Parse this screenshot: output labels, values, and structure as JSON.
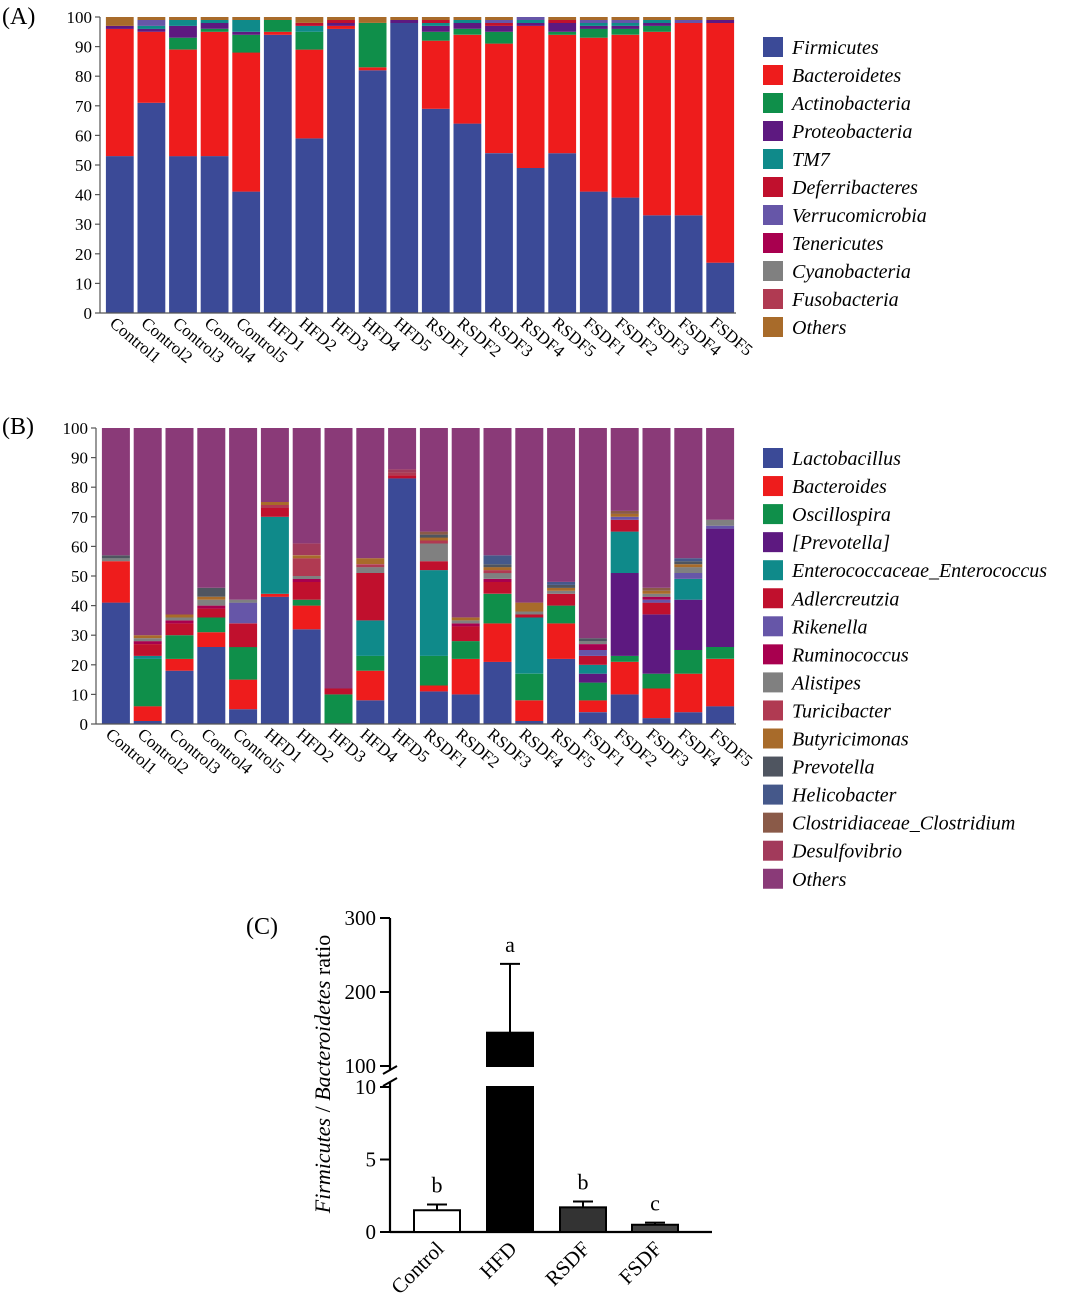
{
  "chart_data": [
    {
      "type": "stacked-bar",
      "panel_label": "(A)",
      "ylim": [
        0,
        100
      ],
      "yticks": [
        0,
        10,
        20,
        30,
        40,
        50,
        60,
        70,
        80,
        90,
        100
      ],
      "categories": [
        "Control1",
        "Control2",
        "Control3",
        "Control4",
        "Control5",
        "HFD1",
        "HFD2",
        "HFD3",
        "HFD4",
        "HFD5",
        "RSDF1",
        "RSDF2",
        "RSDF3",
        "RSDF4",
        "RSDF5",
        "FSDF1",
        "FSDF2",
        "FSDF3",
        "FSDF4",
        "FSDF5"
      ],
      "series": [
        {
          "name": "Firmicutes",
          "color": "#3b4a97",
          "values": [
            53,
            71,
            53,
            53,
            41,
            94,
            59,
            96,
            82,
            98,
            69,
            64,
            54,
            49,
            54,
            41,
            39,
            33,
            33,
            17
          ]
        },
        {
          "name": "Bacteroidetes",
          "color": "#ee1c1c",
          "values": [
            43,
            24,
            36,
            42,
            47,
            1,
            30,
            1,
            1,
            0,
            23,
            30,
            37,
            48,
            40,
            52,
            55,
            62,
            65,
            81
          ]
        },
        {
          "name": "Actinobacteria",
          "color": "#0f8f4a",
          "values": [
            0,
            0,
            4,
            1,
            6,
            4,
            6,
            0,
            15,
            0,
            3,
            2,
            4,
            0,
            1,
            3,
            2,
            2,
            0,
            0
          ]
        },
        {
          "name": "Proteobacteria",
          "color": "#5d1980",
          "values": [
            1,
            1,
            4,
            2,
            1,
            0,
            0,
            1,
            0,
            1,
            2,
            2,
            2,
            1,
            3,
            1,
            1,
            1,
            0,
            1
          ]
        },
        {
          "name": "TM7",
          "color": "#0f8a8a",
          "values": [
            0,
            1,
            2,
            1,
            4,
            0,
            2,
            0,
            0,
            0,
            1,
            1,
            0,
            1,
            0,
            1,
            1,
            1,
            0,
            0
          ]
        },
        {
          "name": "Deferribacteres",
          "color": "#c0102d",
          "values": [
            0,
            0,
            0,
            0,
            0,
            0,
            1,
            1,
            0,
            0,
            1,
            0,
            1,
            0,
            1,
            0,
            0,
            0,
            0,
            0
          ]
        },
        {
          "name": "Verrucomicrobia",
          "color": "#6656a8",
          "values": [
            0,
            2,
            0,
            0,
            0,
            0,
            0,
            0,
            0,
            0,
            0,
            0,
            1,
            1,
            0,
            1,
            1,
            0,
            1,
            0
          ]
        },
        {
          "name": "Tenericutes",
          "color": "#a8004f",
          "values": [
            0,
            0,
            0,
            0,
            0,
            0,
            0,
            0,
            0,
            0,
            0,
            0,
            0,
            0,
            0,
            0,
            0,
            0,
            0,
            0
          ]
        },
        {
          "name": "Cyanobacteria",
          "color": "#808080",
          "values": [
            0,
            0,
            0,
            0,
            0,
            0,
            0,
            0,
            0,
            0,
            0,
            0,
            0,
            0,
            0,
            0,
            0,
            0,
            0,
            0
          ]
        },
        {
          "name": "Fusobacteria",
          "color": "#b03a52",
          "values": [
            0,
            0,
            0,
            0,
            0,
            0,
            0,
            0,
            0,
            0,
            0,
            0,
            0,
            0,
            0,
            0,
            0,
            0,
            0,
            0
          ]
        },
        {
          "name": "Others",
          "color": "#a86b2a",
          "values": [
            3,
            1,
            1,
            1,
            1,
            1,
            2,
            1,
            2,
            1,
            1,
            1,
            1,
            0,
            1,
            1,
            1,
            1,
            1,
            1
          ]
        }
      ]
    },
    {
      "type": "stacked-bar",
      "panel_label": "(B)",
      "ylim": [
        0,
        100
      ],
      "yticks": [
        0,
        10,
        20,
        30,
        40,
        50,
        60,
        70,
        80,
        90,
        100
      ],
      "categories": [
        "Control1",
        "Control2",
        "Control3",
        "Control4",
        "Control5",
        "HFD1",
        "HFD2",
        "HFD3",
        "HFD4",
        "HFD5",
        "RSDF1",
        "RSDF2",
        "RSDF3",
        "RSDF4",
        "RSDF5",
        "FSDF1",
        "FSDF2",
        "FSDF3",
        "FSDF4",
        "FSDF5"
      ],
      "series": [
        {
          "name": "Lactobacillus",
          "color": "#3b4a97",
          "values": [
            41,
            1,
            18,
            26,
            5,
            43,
            32,
            0,
            8,
            83,
            11,
            10,
            21,
            1,
            22,
            4,
            10,
            2,
            4,
            6
          ]
        },
        {
          "name": "Bacteroides",
          "color": "#ee1c1c",
          "values": [
            14,
            5,
            4,
            5,
            10,
            1,
            8,
            0,
            10,
            0,
            2,
            12,
            13,
            7,
            12,
            4,
            11,
            10,
            13,
            16
          ]
        },
        {
          "name": "Oscillospira",
          "color": "#0f8f4a",
          "values": [
            0,
            16,
            8,
            5,
            11,
            0,
            2,
            10,
            5,
            0,
            10,
            6,
            10,
            9,
            6,
            6,
            2,
            5,
            8,
            4
          ]
        },
        {
          "name": "[Prevotella]",
          "color": "#5d1980",
          "values": [
            0,
            0,
            0,
            0,
            0,
            0,
            0,
            0,
            0,
            0,
            0,
            0,
            0,
            0,
            0,
            3,
            28,
            20,
            17,
            40
          ]
        },
        {
          "name": "Enterococcaceae_Enterococcus",
          "color": "#0f8a8a",
          "values": [
            0,
            1,
            0,
            0,
            0,
            26,
            0,
            0,
            12,
            0,
            29,
            0,
            0,
            19,
            0,
            3,
            14,
            0,
            7,
            0
          ]
        },
        {
          "name": "Adlercreutzia",
          "color": "#c0102d",
          "values": [
            0,
            4,
            4,
            3,
            8,
            3,
            6,
            2,
            16,
            1,
            3,
            5,
            4,
            1,
            4,
            3,
            4,
            4,
            0,
            0
          ]
        },
        {
          "name": "Rikenella",
          "color": "#6656a8",
          "values": [
            0,
            0,
            0,
            0,
            7,
            0,
            0,
            0,
            0,
            0,
            0,
            0,
            0,
            0,
            0,
            2,
            1,
            1,
            2,
            1
          ]
        },
        {
          "name": "Ruminococcus",
          "color": "#a8004f",
          "values": [
            0,
            1,
            1,
            1,
            0,
            0,
            1,
            0,
            0,
            0,
            0,
            1,
            1,
            0,
            0,
            2,
            0,
            1,
            0,
            0
          ]
        },
        {
          "name": "Alistipes",
          "color": "#808080",
          "values": [
            1,
            1,
            1,
            2,
            1,
            0,
            1,
            0,
            2,
            0,
            6,
            1,
            2,
            1,
            1,
            1,
            0,
            1,
            2,
            2
          ]
        },
        {
          "name": "Turicibacter",
          "color": "#b03a52",
          "values": [
            0,
            0,
            0,
            0,
            0,
            1,
            6,
            0,
            1,
            1,
            1,
            0,
            1,
            0,
            0,
            0,
            0,
            0,
            0,
            0
          ]
        },
        {
          "name": "Butyricimonas",
          "color": "#a86b2a",
          "values": [
            0,
            1,
            1,
            1,
            0,
            1,
            1,
            0,
            2,
            0,
            1,
            1,
            1,
            3,
            1,
            0,
            1,
            1,
            1,
            0
          ]
        },
        {
          "name": "Prevotella",
          "color": "#4f5560",
          "values": [
            1,
            0,
            0,
            3,
            0,
            0,
            0,
            0,
            0,
            0,
            1,
            0,
            1,
            0,
            1,
            1,
            0,
            0,
            1,
            0
          ]
        },
        {
          "name": "Helicobacter",
          "color": "#45588a",
          "values": [
            0,
            0,
            0,
            0,
            0,
            0,
            0,
            0,
            0,
            0,
            0,
            0,
            3,
            0,
            1,
            0,
            0,
            0,
            1,
            0
          ]
        },
        {
          "name": "Clostridiaceae_Clostridium",
          "color": "#8a5a48",
          "values": [
            0,
            0,
            0,
            0,
            0,
            0,
            0,
            0,
            0,
            0,
            1,
            0,
            0,
            0,
            0,
            0,
            1,
            1,
            0,
            0
          ]
        },
        {
          "name": "Desulfovibrio",
          "color": "#a23a5b",
          "values": [
            0,
            0,
            0,
            0,
            0,
            0,
            4,
            0,
            0,
            1,
            0,
            0,
            0,
            0,
            0,
            0,
            0,
            0,
            0,
            0
          ]
        },
        {
          "name": "Others",
          "color": "#8a3a78",
          "values": [
            43,
            70,
            63,
            54,
            58,
            25,
            39,
            88,
            44,
            14,
            35,
            64,
            43,
            59,
            52,
            71,
            28,
            54,
            44,
            31
          ]
        }
      ]
    },
    {
      "type": "bar",
      "panel_label": "(C)",
      "ylabel_italic_1": "Firmicutes",
      "ylabel_sep": " / ",
      "ylabel_italic_2": "Bacteroidetes",
      "ylabel_rest": " ratio",
      "axis_break": {
        "lower_range": [
          0,
          10
        ],
        "upper_range": [
          100,
          300
        ]
      },
      "lower_ticks": [
        0,
        5,
        10
      ],
      "upper_ticks": [
        100,
        200,
        300
      ],
      "categories": [
        "Control",
        "HFD",
        "RSDF",
        "FSDF"
      ],
      "values": [
        1.5,
        145,
        1.7,
        0.5
      ],
      "errors": [
        0.4,
        93,
        0.4,
        0.15
      ],
      "significance": [
        "b",
        "a",
        "b",
        "c"
      ],
      "fills": [
        "#ffffff",
        "#000000",
        "#333333",
        "#444444"
      ]
    }
  ]
}
